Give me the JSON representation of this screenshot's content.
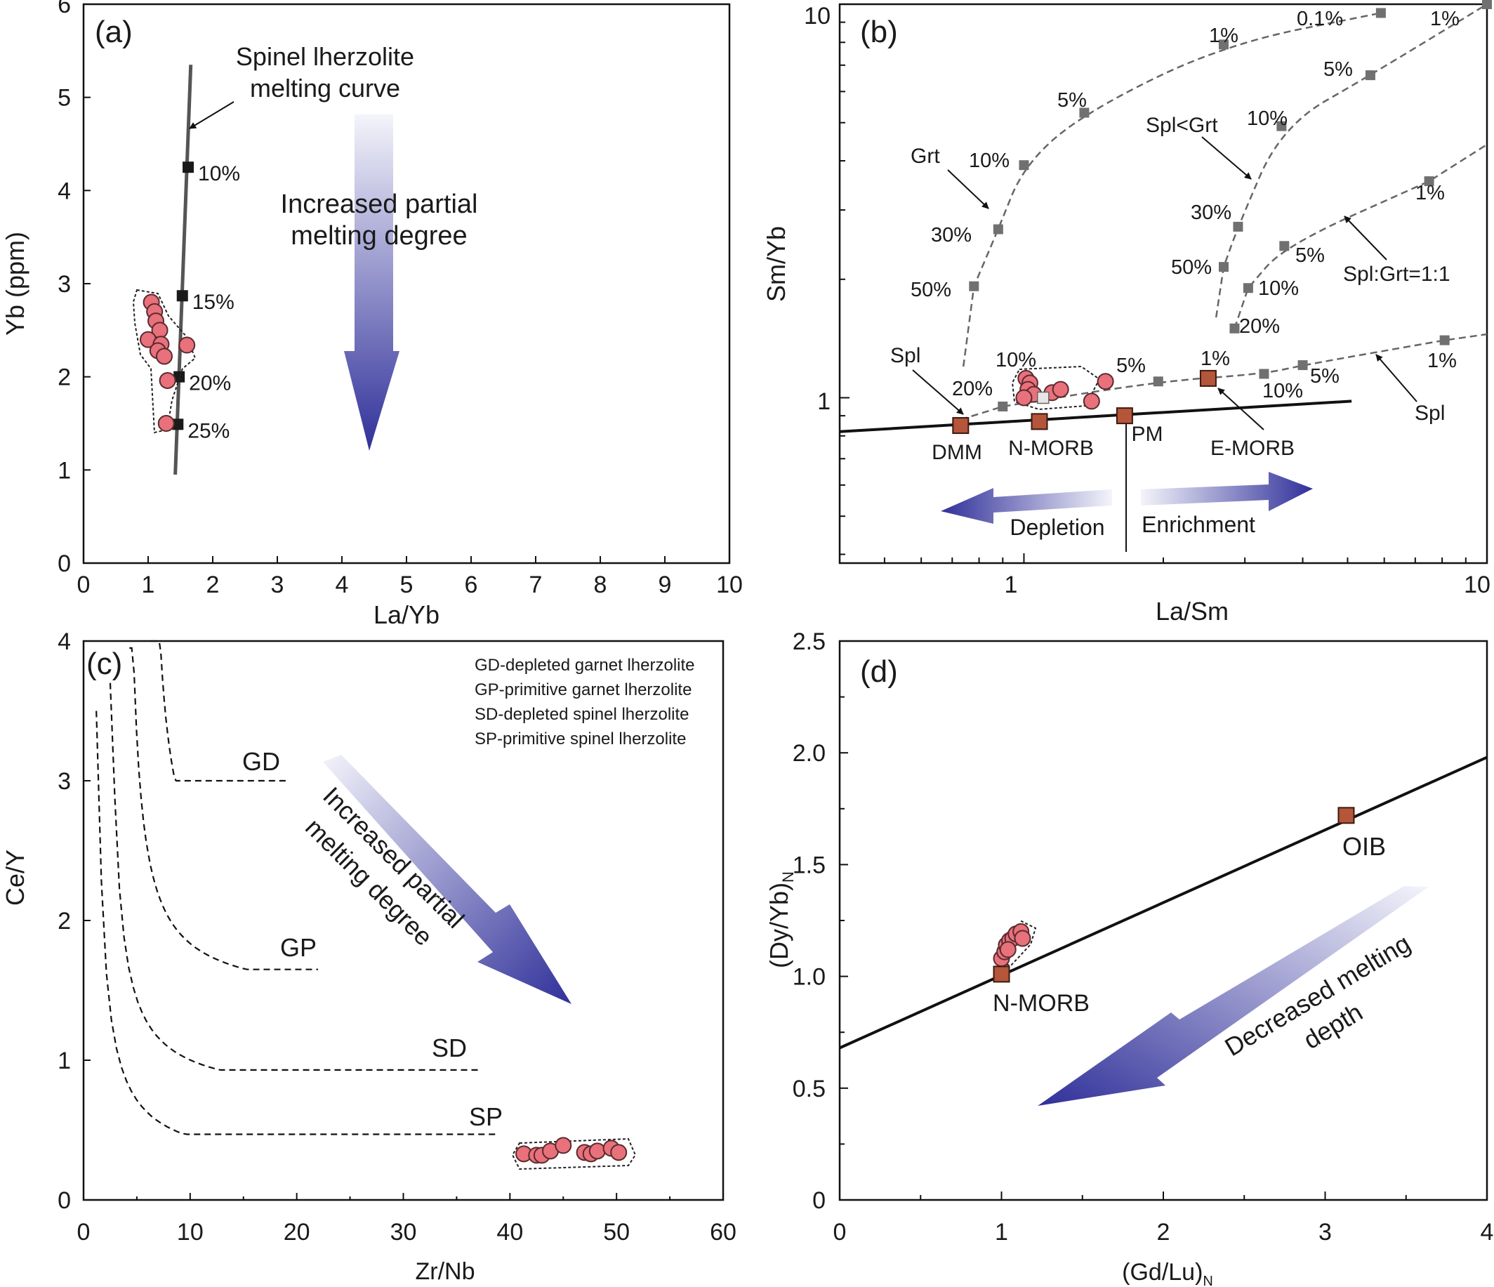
{
  "chart_data": [
    {
      "type": "line",
      "panel": "(a)",
      "xlabel": "La/Yb",
      "ylabel": "Yb (ppm)",
      "xlim": [
        0,
        10
      ],
      "ylim": [
        0,
        6
      ],
      "xticks": [
        0,
        1,
        2,
        3,
        4,
        5,
        6,
        7,
        8,
        9,
        10
      ],
      "yticks": [
        0,
        1,
        2,
        3,
        4,
        5,
        6
      ],
      "melting_curve": {
        "label_line1": "Spinel lherzolite",
        "label_line2": "melting curve",
        "line": [
          [
            1.42,
            0.95
          ],
          [
            1.66,
            5.35
          ]
        ],
        "ticks": [
          {
            "x": 1.62,
            "y": 4.25,
            "label": "10%"
          },
          {
            "x": 1.53,
            "y": 2.87,
            "label": "15%"
          },
          {
            "x": 1.48,
            "y": 2.0,
            "label": "20%"
          },
          {
            "x": 1.46,
            "y": 1.49,
            "label": "25%"
          }
        ]
      },
      "samples": [
        {
          "x": 1.05,
          "y": 2.8
        },
        {
          "x": 1.1,
          "y": 2.7
        },
        {
          "x": 1.12,
          "y": 2.6
        },
        {
          "x": 1.18,
          "y": 2.5
        },
        {
          "x": 1.0,
          "y": 2.4
        },
        {
          "x": 1.2,
          "y": 2.35
        },
        {
          "x": 1.15,
          "y": 2.28
        },
        {
          "x": 1.25,
          "y": 2.22
        },
        {
          "x": 1.6,
          "y": 2.34
        },
        {
          "x": 1.3,
          "y": 1.96
        },
        {
          "x": 1.28,
          "y": 1.5
        }
      ],
      "arrow_label_line1": "Increased partial",
      "arrow_label_line2": "melting degree"
    },
    {
      "type": "line",
      "panel": "(b)",
      "xlabel": "La/Sm",
      "ylabel": "Sm/Yb",
      "x_scale": "log",
      "y_scale": "log",
      "xlim": [
        0.4,
        10
      ],
      "ylim": [
        0.38,
        10
      ],
      "xtick_labels": [
        "1",
        "10"
      ],
      "ytick_labels": [
        "1",
        "10"
      ],
      "mantle_array": [
        [
          0.4,
          0.82
        ],
        [
          5.1,
          0.98
        ]
      ],
      "reservoirs": [
        {
          "name": "DMM",
          "x": 0.73,
          "y": 0.85
        },
        {
          "name": "N-MORB",
          "x": 1.08,
          "y": 0.87
        },
        {
          "name": "PM",
          "x": 1.65,
          "y": 0.9
        },
        {
          "name": "E-MORB",
          "x": 2.5,
          "y": 1.12
        }
      ],
      "curves": [
        {
          "name": "Grt",
          "points": [
            [
              0.78,
              1.92,
              "50%"
            ],
            [
              0.88,
              2.68,
              "30%"
            ],
            [
              1.0,
              3.9,
              "10%"
            ],
            [
              1.35,
              5.3,
              "5%"
            ],
            [
              2.7,
              7.9,
              "1%"
            ],
            [
              5.9,
              9.5,
              "0.1%"
            ]
          ]
        },
        {
          "name": "Spl<Grt",
          "points": [
            [
              2.7,
              2.15,
              "50%"
            ],
            [
              2.9,
              2.72,
              "30%"
            ],
            [
              3.6,
              4.9,
              "10%"
            ],
            [
              5.6,
              6.6,
              "5%"
            ],
            [
              10.0,
              10.0,
              "1%"
            ]
          ]
        },
        {
          "name": "Spl:Grt=1:1",
          "points": [
            [
              3.05,
              1.9,
              "10%"
            ],
            [
              3.65,
              2.43,
              "5%"
            ],
            [
              7.5,
              3.55,
              "1%"
            ]
          ]
        },
        {
          "name": "Spl",
          "points": [
            [
              0.9,
              0.95,
              "20%"
            ],
            [
              1.95,
              1.1,
              "10%"
            ],
            [
              3.3,
              1.15,
              "5%"
            ],
            [
              4.0,
              1.21,
              "1%"
            ],
            [
              8.1,
              1.4,
              ""
            ]
          ]
        }
      ],
      "spl_start": [
        2.85,
        1.5,
        "20%"
      ],
      "other_labels": [
        "1%",
        "5%",
        "10%",
        "5%",
        "1%",
        "10%"
      ],
      "samples": [
        {
          "x": 1.01,
          "y": 1.12
        },
        {
          "x": 1.03,
          "y": 1.09
        },
        {
          "x": 1.02,
          "y": 1.05
        },
        {
          "x": 1.05,
          "y": 1.02
        },
        {
          "x": 1.0,
          "y": 1.0
        },
        {
          "x": 1.15,
          "y": 1.03
        },
        {
          "x": 1.2,
          "y": 1.05
        },
        {
          "x": 1.4,
          "y": 0.98
        },
        {
          "x": 1.5,
          "y": 1.1
        }
      ],
      "grey_sample": {
        "x": 1.1,
        "y": 1.0
      },
      "depletion_label": "Depletion",
      "enrichment_label": "Enrichment"
    },
    {
      "type": "line",
      "panel": "(c)",
      "xlabel": "Zr/Nb",
      "ylabel": "Ce/Y",
      "xlim": [
        0,
        60
      ],
      "ylim": [
        0,
        4
      ],
      "xticks": [
        0,
        10,
        20,
        30,
        40,
        50,
        60
      ],
      "yticks": [
        0,
        1,
        2,
        3,
        4
      ],
      "legend": [
        "GD-depleted garnet lherzolite",
        "GP-primitive garnet lherzolite",
        "SD-depleted spinel lherzolite",
        "SP-primitive spinel lherzolite"
      ],
      "curves": [
        {
          "name": "GD",
          "x0": 6.3,
          "y0": 4.0,
          "x1": 19,
          "y1": 3.0,
          "a": 0.43,
          "b": 1.9,
          "k": 2.7
        },
        {
          "name": "GP",
          "x0": 4.3,
          "y0": 3.95,
          "x1": 22,
          "y1": 1.65,
          "a": 0.5,
          "b": 1.4,
          "k": 2.25
        },
        {
          "name": "SD",
          "x0": 2.5,
          "y0": 3.7,
          "x1": 37,
          "y1": 0.93,
          "a": 0.45,
          "b": 0.7,
          "k": 1.95
        },
        {
          "name": "SP",
          "x0": 1.2,
          "y0": 3.5,
          "x1": 39,
          "y1": 0.47,
          "a": 0.42,
          "b": 0.2,
          "k": 1.88
        }
      ],
      "samples": [
        {
          "x": 41.3,
          "y": 0.33
        },
        {
          "x": 42.5,
          "y": 0.32
        },
        {
          "x": 43.0,
          "y": 0.32
        },
        {
          "x": 43.8,
          "y": 0.35
        },
        {
          "x": 45.0,
          "y": 0.39
        },
        {
          "x": 47.0,
          "y": 0.34
        },
        {
          "x": 47.6,
          "y": 0.33
        },
        {
          "x": 48.2,
          "y": 0.35
        },
        {
          "x": 49.5,
          "y": 0.37
        },
        {
          "x": 50.2,
          "y": 0.34
        }
      ],
      "arrow_label_line1": "Increased partial",
      "arrow_label_line2": "melting degree"
    },
    {
      "type": "line",
      "panel": "(d)",
      "xlabel": "(Gd/Lu)",
      "xlabel_sub": "N",
      "ylabel": "(Dy/Yb)",
      "ylabel_sub": "N",
      "xlim": [
        0,
        4
      ],
      "ylim": [
        0,
        2.5
      ],
      "xticks": [
        0,
        1,
        2,
        3,
        4
      ],
      "xtick_labels": [
        "0",
        "1",
        "2",
        "3",
        "4"
      ],
      "yticks": [
        0,
        0.5,
        1.0,
        1.5,
        2.0,
        2.5
      ],
      "ytick_labels": [
        "0",
        "0.5",
        "1.0",
        "1.5",
        "2.0",
        "2.5"
      ],
      "line": [
        [
          0,
          0.68
        ],
        [
          4.0,
          1.98
        ]
      ],
      "reservoirs": [
        {
          "name": "N-MORB",
          "x": 1.0,
          "y": 1.01
        },
        {
          "name": "OIB",
          "x": 3.13,
          "y": 1.72
        }
      ],
      "samples": [
        {
          "x": 1.0,
          "y": 1.08
        },
        {
          "x": 1.02,
          "y": 1.11
        },
        {
          "x": 1.03,
          "y": 1.14
        },
        {
          "x": 1.05,
          "y": 1.16
        },
        {
          "x": 1.07,
          "y": 1.17
        },
        {
          "x": 1.09,
          "y": 1.19
        },
        {
          "x": 1.12,
          "y": 1.2
        },
        {
          "x": 1.13,
          "y": 1.17
        },
        {
          "x": 1.04,
          "y": 1.12
        }
      ],
      "arrow_label_line1": "Decreased melting",
      "arrow_label_line2": "depth"
    }
  ],
  "colors": {
    "sample_fill": "#e8717b",
    "sample_stroke": "#5a2a2e",
    "reservoir_fill": "#b5553a",
    "curve_marker": "#707070",
    "arrow_dark": "#30309a",
    "arrow_light": "#f4f4fb"
  }
}
